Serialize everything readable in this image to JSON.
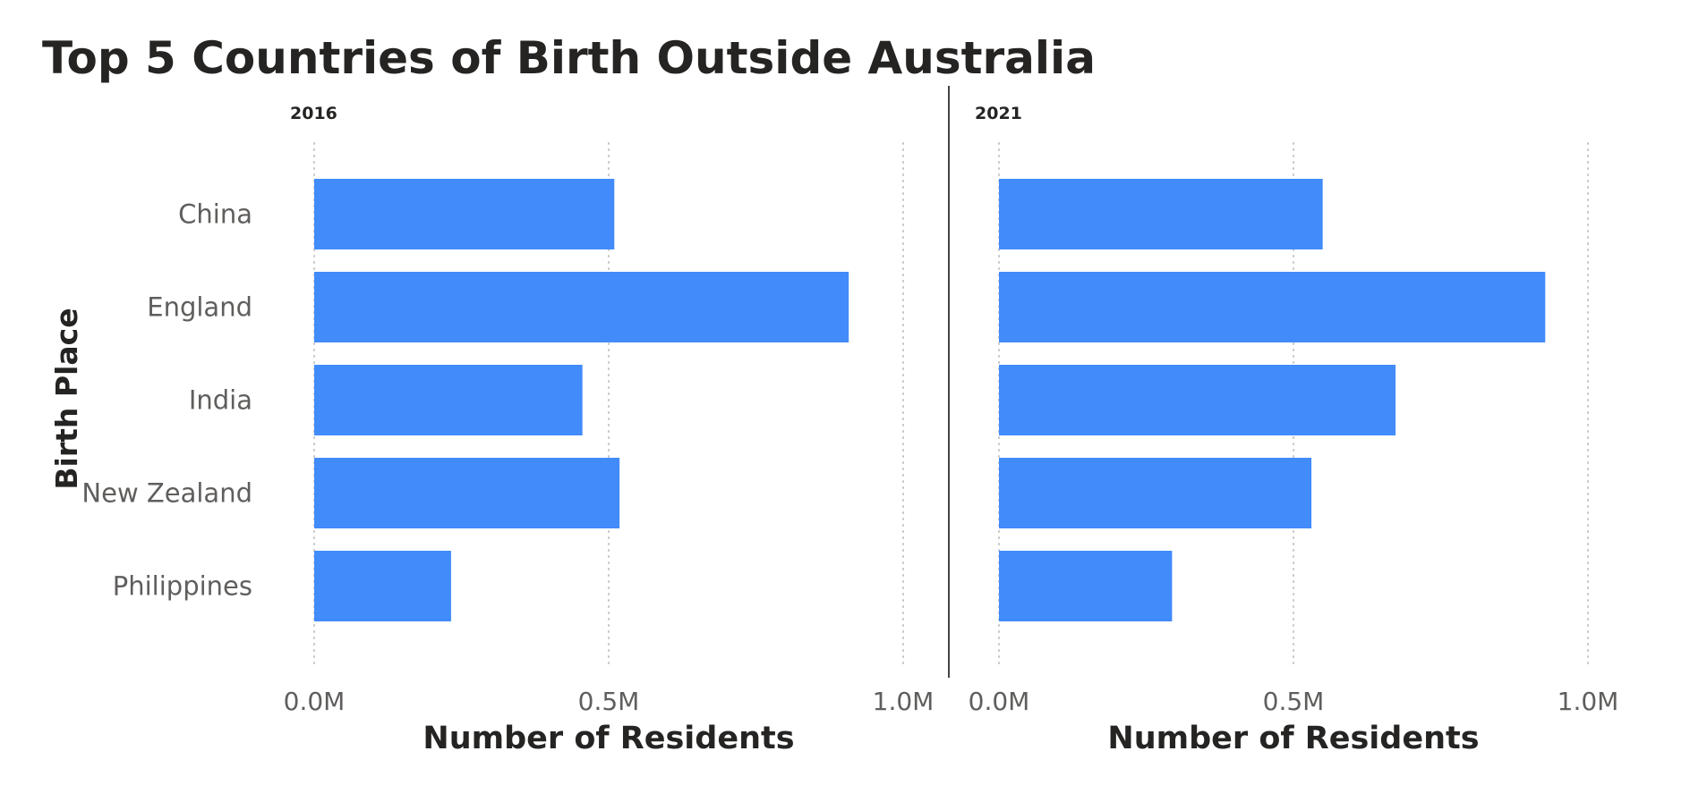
{
  "chart_data": {
    "type": "bar",
    "orientation": "horizontal",
    "title": "Top 5 Countries of Birth Outside Australia",
    "ylabel": "Birth Place",
    "xlabel": "Number of Residents",
    "categories": [
      "China",
      "England",
      "India",
      "New Zealand",
      "Philippines"
    ],
    "x_ticks": [
      "0.0M",
      "0.5M",
      "1.0M"
    ],
    "xlim": [
      0,
      1000000
    ],
    "grid": "vertical dotted",
    "bar_color": "#418BFA",
    "panels": [
      {
        "name": "2016",
        "values": [
          509560,
          907570,
          455390,
          518460,
          232390
        ]
      },
      {
        "name": "2021",
        "values": [
          549620,
          927490,
          673350,
          530490,
          293890
        ]
      }
    ]
  }
}
